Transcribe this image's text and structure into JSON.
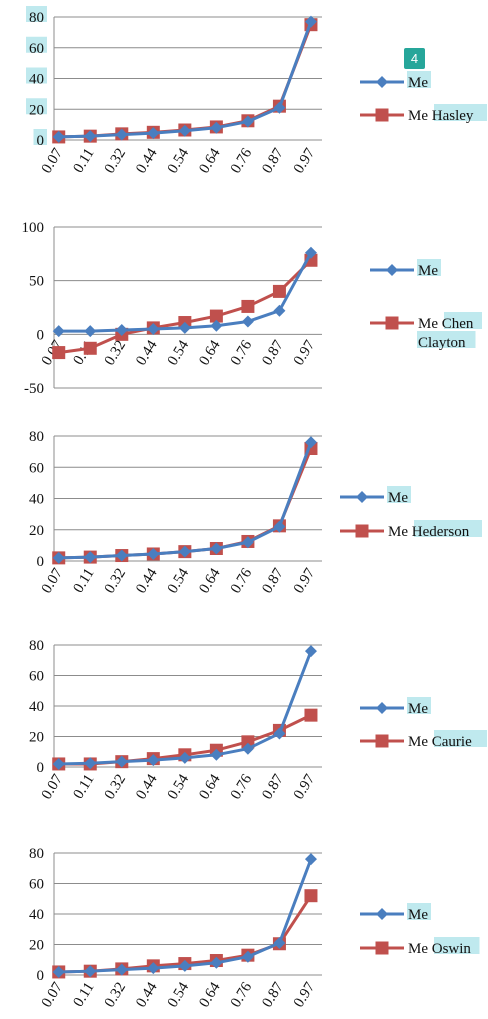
{
  "overlay": {
    "badge": "4"
  },
  "colors": {
    "me": "#4a7ebf",
    "other": "#c0504d",
    "highlight": "#bfe9ee",
    "grid": "#8c8c8c",
    "badge": "#26a69a"
  },
  "chart_data": [
    {
      "type": "line",
      "categories": [
        "0.07",
        "0.11",
        "0.32",
        "0.44",
        "0.54",
        "0.64",
        "0.76",
        "0.87",
        "0.97"
      ],
      "ylim": [
        0,
        80
      ],
      "yticks": [
        0,
        20,
        40,
        60,
        80
      ],
      "grid": true,
      "legend_position": "right",
      "series": [
        {
          "name": "Me",
          "values": [
            2,
            2.5,
            3.5,
            4.5,
            6,
            8,
            12,
            21,
            77
          ]
        },
        {
          "name": "Me Hasley",
          "values": [
            2,
            2.5,
            4,
            5,
            6.5,
            8.5,
            12.5,
            22,
            75
          ]
        }
      ]
    },
    {
      "type": "line",
      "categories": [
        "0.07",
        "0.11",
        "0.32",
        "0.44",
        "0.54",
        "0.64",
        "0.76",
        "0.87",
        "0.97"
      ],
      "ylim": [
        -50,
        100
      ],
      "yticks": [
        -50,
        0,
        50,
        100
      ],
      "grid": true,
      "legend_position": "right",
      "series": [
        {
          "name": "Me",
          "values": [
            3,
            3,
            4,
            5,
            6,
            8,
            12,
            22,
            76
          ]
        },
        {
          "name": "Me Chen Clayton",
          "values": [
            -17,
            -13,
            0,
            6,
            11,
            17,
            26,
            40,
            69
          ]
        }
      ]
    },
    {
      "type": "line",
      "categories": [
        "0.07",
        "0.11",
        "0.32",
        "0.44",
        "0.54",
        "0.64",
        "0.76",
        "0.87",
        "0.97"
      ],
      "ylim": [
        0,
        80
      ],
      "yticks": [
        0,
        20,
        40,
        60,
        80
      ],
      "grid": true,
      "legend_position": "right",
      "series": [
        {
          "name": "Me",
          "values": [
            2,
            2.5,
            3.5,
            4.5,
            6,
            8,
            12,
            22,
            76
          ]
        },
        {
          "name": "Me Hederson",
          "values": [
            2,
            2.5,
            3.5,
            4.5,
            6,
            8,
            12.5,
            22.5,
            72
          ]
        }
      ]
    },
    {
      "type": "line",
      "categories": [
        "0.07",
        "0.11",
        "0.32",
        "0.44",
        "0.54",
        "0.64",
        "0.76",
        "0.87",
        "0.97"
      ],
      "ylim": [
        0,
        80
      ],
      "yticks": [
        0,
        20,
        40,
        60,
        80
      ],
      "grid": true,
      "legend_position": "right",
      "series": [
        {
          "name": "Me",
          "values": [
            2,
            2.5,
            3.5,
            4.5,
            6,
            8,
            12,
            22,
            76
          ]
        },
        {
          "name": "Me Caurie",
          "values": [
            2,
            2,
            3.5,
            5.5,
            8,
            11,
            16.5,
            24,
            34
          ]
        }
      ]
    },
    {
      "type": "line",
      "categories": [
        "0.07",
        "0.11",
        "0.32",
        "0.44",
        "0.54",
        "0.64",
        "0.76",
        "0.87",
        "0.97"
      ],
      "ylim": [
        0,
        80
      ],
      "yticks": [
        0,
        20,
        40,
        60,
        80
      ],
      "grid": true,
      "legend_position": "right",
      "series": [
        {
          "name": "Me",
          "values": [
            2,
            2.5,
            3.5,
            4.5,
            6,
            8,
            12,
            21,
            76
          ]
        },
        {
          "name": "Me Oswin",
          "values": [
            2,
            2.5,
            4,
            6,
            7.5,
            9.5,
            13,
            20.5,
            52
          ]
        }
      ]
    }
  ]
}
